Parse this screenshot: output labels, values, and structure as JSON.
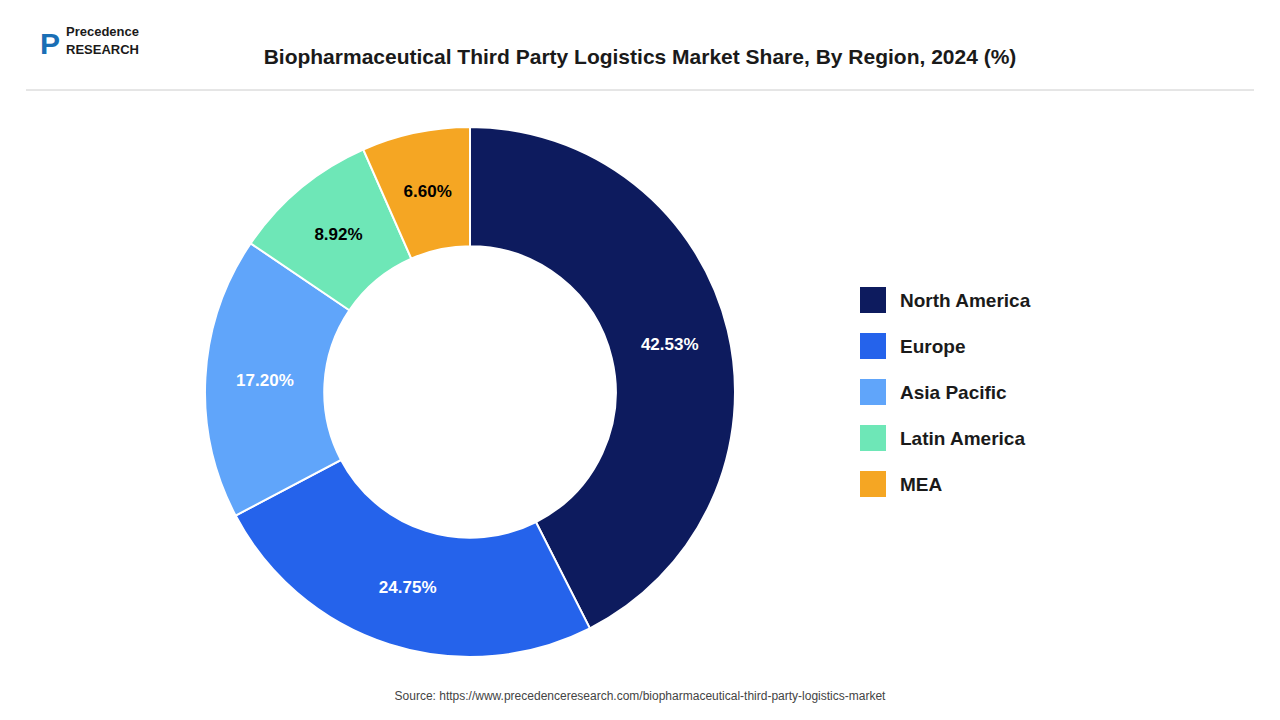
{
  "chart_data": {
    "type": "donut",
    "title": "Biopharmaceutical Third Party Logistics Market Share, By Region, 2024 (%)",
    "categories": [
      "North America",
      "Europe",
      "Asia Pacific",
      "Latin America",
      "MEA"
    ],
    "values": [
      42.53,
      24.75,
      17.2,
      8.92,
      6.6
    ],
    "value_labels": [
      "42.53%",
      "24.75%",
      "17.20%",
      "8.92%",
      "6.60%"
    ],
    "colors": [
      "#0d1b5e",
      "#2563eb",
      "#60a5fa",
      "#6ee7b7",
      "#f5a623"
    ],
    "data_labels": true,
    "legend": "right",
    "annotations": [
      "P",
      "Precedence",
      "RESEARCH",
      "Source: https://www.precedenceresearch.com/biopharmaceutical-third-party-logistics-market"
    ]
  }
}
